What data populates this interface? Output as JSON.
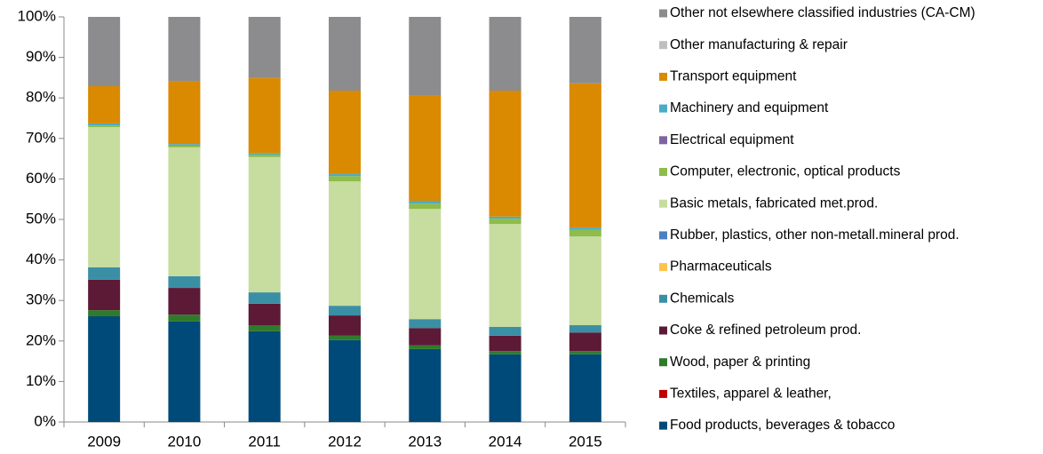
{
  "chart_data": {
    "type": "stacked_bar",
    "categories": [
      "2009",
      "2010",
      "2011",
      "2012",
      "2013",
      "2014",
      "2015"
    ],
    "series": [
      {
        "name": "Food products, beverages & tobacco",
        "color": "#004a7a",
        "values": [
          26.1,
          24.8,
          22.4,
          20.2,
          18.0,
          16.7,
          16.7
        ]
      },
      {
        "name": "Textiles, apparel & leather,",
        "color": "#c00000",
        "values": [
          0,
          0,
          0,
          0,
          0,
          0,
          0
        ]
      },
      {
        "name": "Wood, paper & printing",
        "color": "#2f7a2b",
        "values": [
          1.5,
          1.7,
          1.5,
          1.1,
          0.9,
          0.8,
          0.8
        ]
      },
      {
        "name": "Coke & refined petroleum prod.",
        "color": "#5c1a36",
        "values": [
          7.5,
          6.6,
          5.3,
          5.0,
          4.3,
          3.8,
          4.6
        ]
      },
      {
        "name": "Chemicals",
        "color": "#3b8fa5",
        "values": [
          3.1,
          2.9,
          2.8,
          2.4,
          2.2,
          2.2,
          1.8
        ]
      },
      {
        "name": "Pharmaceuticals",
        "color": "#ffc34d",
        "values": [
          0,
          0,
          0,
          0,
          0,
          0,
          0
        ]
      },
      {
        "name": "Rubber, plastics, other non-metall.mineral prod.",
        "color": "#4a7fc0",
        "values": [
          0,
          0,
          0,
          0,
          0,
          0,
          0
        ]
      },
      {
        "name": "Basic metals, fabricated met.prod.",
        "color": "#c6dd9f",
        "values": [
          34.6,
          31.8,
          33.4,
          30.7,
          27.2,
          25.4,
          21.9
        ]
      },
      {
        "name": "Computer, electronic, optical products",
        "color": "#8fbc4a",
        "values": [
          0.4,
          0.4,
          0.6,
          1.3,
          1.3,
          1.3,
          1.6
        ]
      },
      {
        "name": "Electrical equipment",
        "color": "#8064a2",
        "values": [
          0,
          0,
          0,
          0,
          0,
          0,
          0
        ]
      },
      {
        "name": "Machinery and equipment",
        "color": "#4bacc6",
        "values": [
          0.5,
          0.4,
          0.4,
          0.5,
          0.7,
          0.5,
          0.6
        ]
      },
      {
        "name": "Transport equipment",
        "color": "#d98a00",
        "values": [
          9.2,
          15.6,
          18.5,
          20.6,
          25.9,
          31.1,
          35.6
        ]
      },
      {
        "name": "Other manufacturing & repair",
        "color": "#bfbfbf",
        "values": [
          0,
          0,
          0,
          0,
          0,
          0,
          0
        ]
      },
      {
        "name": "Other not elsewhere classified industries (CA-CM)",
        "color": "#8c8c8e",
        "values": [
          17.1,
          15.8,
          15.1,
          18.2,
          19.5,
          18.2,
          16.4
        ]
      }
    ],
    "ylim": [
      0,
      100
    ],
    "yticks": [
      {
        "value": 0,
        "label": "0%"
      },
      {
        "value": 10,
        "label": "10%"
      },
      {
        "value": 20,
        "label": "20%"
      },
      {
        "value": 30,
        "label": "30%"
      },
      {
        "value": 40,
        "label": "40%"
      },
      {
        "value": 50,
        "label": "50%"
      },
      {
        "value": 60,
        "label": "60%"
      },
      {
        "value": 70,
        "label": "70%"
      },
      {
        "value": 80,
        "label": "80%"
      },
      {
        "value": 90,
        "label": "90%"
      },
      {
        "value": 100,
        "label": "100%"
      }
    ],
    "legend": "right"
  }
}
